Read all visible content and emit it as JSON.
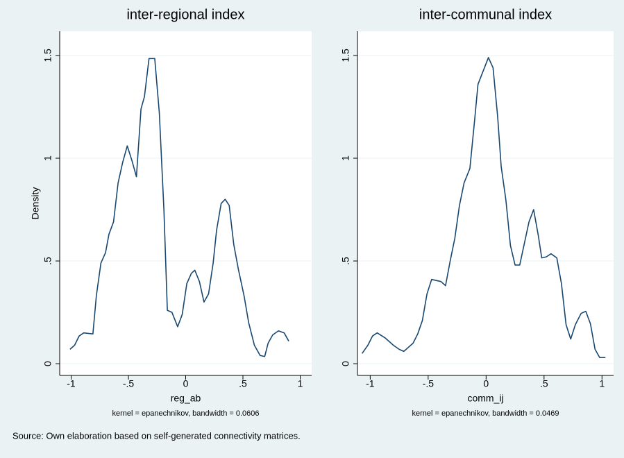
{
  "chart_data": [
    {
      "type": "line",
      "title": "inter-regional index",
      "xlabel": "reg_ab",
      "ylabel": "Density",
      "note": "kernel = epanechnikov, bandwidth = 0.0606",
      "color": "#1a476f",
      "grid": true,
      "x": [
        -1.01,
        -0.97,
        -0.93,
        -0.89,
        -0.81,
        -0.78,
        -0.74,
        -0.7,
        -0.67,
        -0.63,
        -0.59,
        -0.55,
        -0.51,
        -0.47,
        -0.43,
        -0.39,
        -0.36,
        -0.32,
        -0.27,
        -0.23,
        -0.19,
        -0.16,
        -0.12,
        -0.07,
        -0.03,
        0.01,
        0.05,
        0.08,
        0.12,
        0.16,
        0.2,
        0.24,
        0.27,
        0.31,
        0.345,
        0.38,
        0.42,
        0.46,
        0.51,
        0.55,
        0.6,
        0.65,
        0.69,
        0.72,
        0.76,
        0.81,
        0.86,
        0.9
      ],
      "values": [
        0.07,
        0.09,
        0.135,
        0.15,
        0.145,
        0.33,
        0.49,
        0.54,
        0.63,
        0.69,
        0.88,
        0.98,
        1.06,
        0.99,
        0.91,
        1.24,
        1.3,
        1.485,
        1.485,
        1.22,
        0.75,
        0.26,
        0.25,
        0.18,
        0.24,
        0.39,
        0.44,
        0.455,
        0.4,
        0.3,
        0.34,
        0.49,
        0.65,
        0.78,
        0.8,
        0.77,
        0.58,
        0.46,
        0.33,
        0.2,
        0.09,
        0.04,
        0.035,
        0.1,
        0.14,
        0.16,
        0.15,
        0.11
      ],
      "xlim": [
        -1.1,
        1.1
      ],
      "ylim": [
        -0.057,
        1.618
      ],
      "xticks": [
        -1,
        {
          "value": -0.5,
          "label": "-.5"
        },
        0,
        {
          "value": 0.5,
          "label": ".5"
        },
        1
      ],
      "yticks": [
        0,
        {
          "value": 0.5,
          "label": ".5"
        },
        1,
        1.5
      ]
    },
    {
      "type": "line",
      "title": "inter-communal index",
      "xlabel": "comm_ij",
      "note": "kernel = epanechnikov, bandwidth = 0.0469",
      "color": "#1a476f",
      "grid": true,
      "x": [
        -1.07,
        -1.02,
        -0.98,
        -0.94,
        -0.87,
        -0.8,
        -0.75,
        -0.71,
        -0.67,
        -0.63,
        -0.59,
        -0.55,
        -0.51,
        -0.47,
        -0.43,
        -0.39,
        -0.35,
        -0.31,
        -0.27,
        -0.23,
        -0.19,
        -0.14,
        -0.1,
        -0.07,
        0.02,
        0.06,
        0.1,
        0.13,
        0.17,
        0.21,
        0.25,
        0.29,
        0.33,
        0.37,
        0.41,
        0.45,
        0.48,
        0.52,
        0.56,
        0.61,
        0.65,
        0.69,
        0.73,
        0.77,
        0.82,
        0.86,
        0.9,
        0.94,
        0.98,
        1.03
      ],
      "values": [
        0.05,
        0.09,
        0.135,
        0.15,
        0.125,
        0.09,
        0.07,
        0.06,
        0.08,
        0.1,
        0.145,
        0.21,
        0.34,
        0.41,
        0.405,
        0.4,
        0.38,
        0.5,
        0.61,
        0.77,
        0.88,
        0.95,
        1.18,
        1.36,
        1.49,
        1.44,
        1.2,
        0.96,
        0.8,
        0.575,
        0.48,
        0.48,
        0.585,
        0.69,
        0.75,
        0.625,
        0.515,
        0.52,
        0.535,
        0.515,
        0.39,
        0.19,
        0.12,
        0.19,
        0.245,
        0.255,
        0.195,
        0.07,
        0.03,
        0.03
      ],
      "xlim": [
        -1.11,
        1.1
      ],
      "ylim": [
        -0.057,
        1.618
      ],
      "xticks": [
        -1,
        {
          "value": -0.5,
          "label": "-.5"
        },
        0,
        {
          "value": 0.5,
          "label": ".5"
        },
        1
      ],
      "yticks": [
        0,
        {
          "value": 0.5,
          "label": ".5"
        },
        1,
        1.5
      ]
    }
  ],
  "source": "Source: Own elaboration based on self-generated connectivity matrices."
}
